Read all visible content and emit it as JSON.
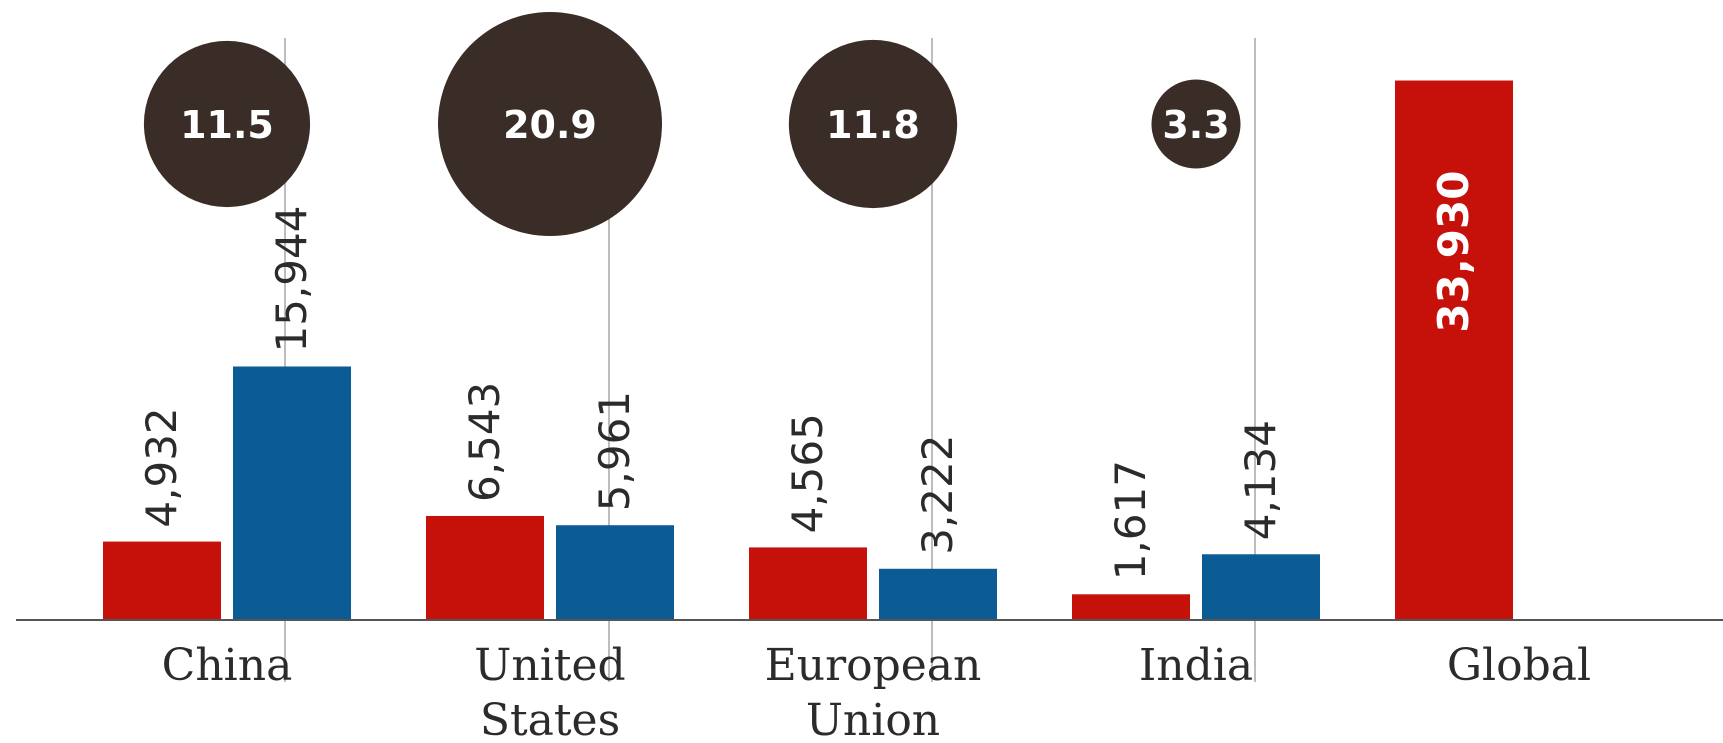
{
  "chart_data": {
    "type": "bar",
    "categories": [
      "China",
      "United States",
      "European Union",
      "India",
      "Global"
    ],
    "category_lines": [
      [
        "China"
      ],
      [
        "United",
        "States"
      ],
      [
        "European",
        "Union"
      ],
      [
        "India"
      ],
      [
        "Global"
      ]
    ],
    "series": [
      {
        "values": [
          4932,
          6543,
          4565,
          1617,
          33930
        ],
        "labels": [
          "4,932",
          "6,543",
          "4,565",
          "1,617",
          "33,930"
        ]
      },
      {
        "values": [
          15944,
          5961,
          3222,
          4134,
          null
        ],
        "labels": [
          "15,944",
          "5,961",
          "3,222",
          "4,134",
          ""
        ]
      }
    ],
    "bubbles": {
      "values": [
        11.5,
        20.9,
        11.8,
        3.3,
        null
      ],
      "labels": [
        "11.5",
        "20.9",
        "11.8",
        "3.3",
        ""
      ]
    },
    "ylim": [
      0,
      40000
    ],
    "colors": {
      "series_1": "#c6110b",
      "series_2": "#0b5c94",
      "bubble": "#3a2d28",
      "axis": "#555555",
      "divider": "#bdbdbd"
    }
  }
}
